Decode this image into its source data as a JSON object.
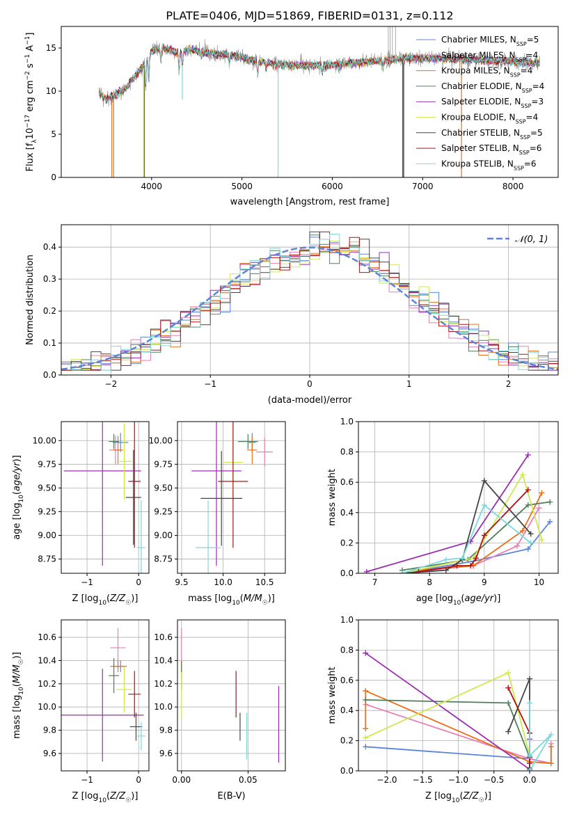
{
  "figure_title": "PLATE=0406, MJD=51869, FIBERID=0131, z=0.112",
  "colors": {
    "Chabrier MILES": "#5b84d8",
    "Salpeter MILES": "#e77fb5",
    "Kroupa MILES": "#e8701a",
    "Chabrier ELODIE": "#4f7f5a",
    "Salpeter ELODIE": "#9b2db0",
    "Kroupa ELODIE": "#cfe84f",
    "Chabrier STELIB": "#444444",
    "Salpeter STELIB": "#b01010",
    "Kroupa STELIB": "#79d9dd"
  },
  "chart_data": [
    {
      "id": "spectrum",
      "type": "line",
      "title": "PLATE=0406, MJD=51869, FIBERID=0131, z=0.112",
      "xlabel": "wavelength [Angstrom, rest frame]",
      "ylabel": "Flux [f_λ10^-17 erg cm^-2 s^-1 A^-1]",
      "xlim": [
        3000,
        8500
      ],
      "ylim": [
        0,
        17.5
      ],
      "xticks": [
        "4000",
        "5000",
        "6000",
        "7000",
        "8000"
      ],
      "yticks": [
        "0",
        "5",
        "10",
        "15"
      ],
      "grid": false,
      "legend_position": "top-right",
      "legend": [
        {
          "label": "Chabrier MILES, N",
          "sub": "SSP",
          "suffix": "=5"
        },
        {
          "label": "Salpeter MILES, N",
          "sub": "SSP",
          "suffix": "=4"
        },
        {
          "label": "Kroupa MILES, N",
          "sub": "SSP",
          "suffix": "=4"
        },
        {
          "label": "Chabrier ELODIE, N",
          "sub": "SSP",
          "suffix": "=4"
        },
        {
          "label": "Salpeter ELODIE, N",
          "sub": "SSP",
          "suffix": "=3"
        },
        {
          "label": "Kroupa ELODIE, N",
          "sub": "SSP",
          "suffix": "=4"
        },
        {
          "label": "Chabrier STELIB, N",
          "sub": "SSP",
          "suffix": "=5"
        },
        {
          "label": "Salpeter STELIB, N",
          "sub": "SSP",
          "suffix": "=6"
        },
        {
          "label": "Kroupa STELIB, N",
          "sub": "SSP",
          "suffix": "=6"
        }
      ],
      "continuum": [
        [
          3420,
          9.8
        ],
        [
          3500,
          9.0
        ],
        [
          3600,
          9.6
        ],
        [
          3700,
          10.2
        ],
        [
          3800,
          11.5
        ],
        [
          3900,
          12.8
        ],
        [
          4000,
          14.6
        ],
        [
          4100,
          15.0
        ],
        [
          4200,
          14.8
        ],
        [
          4300,
          14.4
        ],
        [
          4400,
          14.8
        ],
        [
          4500,
          14.6
        ],
        [
          4700,
          14.3
        ],
        [
          4900,
          14.2
        ],
        [
          5000,
          13.9
        ],
        [
          5200,
          13.4
        ],
        [
          5400,
          13.1
        ],
        [
          5600,
          13.0
        ],
        [
          5800,
          13.0
        ],
        [
          6000,
          13.0
        ],
        [
          6200,
          13.2
        ],
        [
          6400,
          13.4
        ],
        [
          6600,
          13.6
        ],
        [
          6800,
          13.8
        ],
        [
          7000,
          13.8
        ],
        [
          7200,
          13.8
        ],
        [
          7400,
          13.7
        ],
        [
          7600,
          13.6
        ],
        [
          7800,
          13.5
        ],
        [
          8000,
          13.4
        ],
        [
          8200,
          13.3
        ],
        [
          8300,
          13.3
        ]
      ]
    },
    {
      "id": "residuals",
      "type": "histogram",
      "xlabel": "(data-model)/error",
      "ylabel": "Normed distribution",
      "xlim": [
        -2.5,
        2.5
      ],
      "ylim": [
        0,
        0.47
      ],
      "xticks": [
        "−2",
        "−1",
        "0",
        "1",
        "2"
      ],
      "yticks": [
        "0.0",
        "0.1",
        "0.2",
        "0.3",
        "0.4"
      ],
      "grid": true,
      "legend": "𝒩(0, 1)",
      "legend_position": "top-right",
      "reference_curve": "normal(0,1)"
    },
    {
      "id": "age_vs_Z",
      "type": "scatter",
      "xlabel": "Z [log10(Z/Z☉)]",
      "ylabel": "age  [log10(age/yr)]",
      "xlim": [
        -1.5,
        0.2
      ],
      "ylim": [
        8.6,
        10.2
      ],
      "xticks": [
        "−1",
        "0"
      ],
      "yticks": [
        "8.75",
        "9.00",
        "9.25",
        "9.50",
        "9.75",
        "10.00"
      ],
      "grid": true,
      "points": [
        {
          "model": "Chabrier MILES",
          "x": -0.35,
          "y": 9.98,
          "xerr": 0.15,
          "yerr": 0.1
        },
        {
          "model": "Salpeter MILES",
          "x": -0.45,
          "y": 9.9,
          "xerr": 0.12,
          "yerr": 0.15
        },
        {
          "model": "Kroupa MILES",
          "x": -0.4,
          "y": 9.9,
          "xerr": 0.1,
          "yerr": 0.15
        },
        {
          "model": "Chabrier ELODIE",
          "x": -0.48,
          "y": 9.99,
          "xerr": 0.1,
          "yerr": 0.08
        },
        {
          "model": "Salpeter ELODIE",
          "x": -0.7,
          "y": 9.68,
          "xerr": 0.75,
          "yerr": 1.0
        },
        {
          "model": "Kroupa ELODIE",
          "x": -0.28,
          "y": 9.78,
          "xerr": 0.15,
          "yerr": 0.4
        },
        {
          "model": "Chabrier STELIB",
          "x": -0.1,
          "y": 9.4,
          "xerr": 0.15,
          "yerr": 0.5
        },
        {
          "model": "Salpeter STELIB",
          "x": -0.08,
          "y": 9.57,
          "xerr": 0.12,
          "yerr": 0.7
        },
        {
          "model": "Kroupa STELIB",
          "x": 0.05,
          "y": 8.87,
          "xerr": 0.08,
          "yerr": 0.5
        }
      ]
    },
    {
      "id": "age_vs_mass",
      "type": "scatter",
      "xlabel": "mass [log10(M/M☉)]",
      "ylabel": "",
      "xlim": [
        9.45,
        10.75
      ],
      "ylim": [
        8.6,
        10.2
      ],
      "xticks": [
        "9.5",
        "10.0",
        "10.5"
      ],
      "yticks": [
        "8.75",
        "9.00",
        "9.25",
        "9.50",
        "9.75",
        "10.00"
      ],
      "grid": true,
      "points": [
        {
          "model": "Chabrier MILES",
          "x": 10.35,
          "y": 9.98,
          "xerr": 0.04,
          "yerr": 0.1
        },
        {
          "model": "Salpeter MILES",
          "x": 10.5,
          "y": 9.88,
          "xerr": 0.1,
          "yerr": 0.15
        },
        {
          "model": "Kroupa MILES",
          "x": 10.35,
          "y": 9.9,
          "xerr": 0.06,
          "yerr": 0.15
        },
        {
          "model": "Chabrier ELODIE",
          "x": 10.3,
          "y": 9.99,
          "xerr": 0.12,
          "yerr": 0.08
        },
        {
          "model": "Salpeter ELODIE",
          "x": 9.92,
          "y": 9.68,
          "xerr": 0.3,
          "yerr": 1.0
        },
        {
          "model": "Kroupa ELODIE",
          "x": 10.12,
          "y": 9.77,
          "xerr": 0.12,
          "yerr": 0.4
        },
        {
          "model": "Chabrier STELIB",
          "x": 9.98,
          "y": 9.39,
          "xerr": 0.25,
          "yerr": 0.5
        },
        {
          "model": "Salpeter STELIB",
          "x": 10.12,
          "y": 9.57,
          "xerr": 0.18,
          "yerr": 0.7
        },
        {
          "model": "Kroupa STELIB",
          "x": 9.82,
          "y": 8.87,
          "xerr": 0.15,
          "yerr": 0.5
        }
      ]
    },
    {
      "id": "weight_vs_age",
      "type": "line",
      "xlabel": "age  [log10(age/yr)]",
      "ylabel": "mass weight",
      "xlim": [
        6.7,
        10.35
      ],
      "ylim": [
        0,
        1.0
      ],
      "xticks": [
        "7",
        "8",
        "9",
        "10"
      ],
      "yticks": [
        "0.0",
        "0.2",
        "0.4",
        "0.6",
        "0.8",
        "1.0"
      ],
      "grid": true,
      "series": [
        {
          "model": "Chabrier MILES",
          "x": [
            7.5,
            8.8,
            9.8,
            10.2
          ],
          "y": [
            0.0,
            0.08,
            0.16,
            0.34
          ]
        },
        {
          "model": "Salpeter MILES",
          "x": [
            8.0,
            8.8,
            9.6,
            10.0
          ],
          "y": [
            0.02,
            0.05,
            0.18,
            0.43
          ]
        },
        {
          "model": "Kroupa MILES",
          "x": [
            7.8,
            8.8,
            9.7,
            10.05
          ],
          "y": [
            0.02,
            0.05,
            0.28,
            0.53
          ]
        },
        {
          "model": "Chabrier ELODIE",
          "x": [
            7.5,
            8.7,
            9.8,
            10.2
          ],
          "y": [
            0.02,
            0.09,
            0.45,
            0.47
          ]
        },
        {
          "model": "Salpeter ELODIE",
          "x": [
            6.85,
            8.75,
            9.8
          ],
          "y": [
            0.01,
            0.21,
            0.78
          ]
        },
        {
          "model": "Kroupa ELODIE",
          "x": [
            7.5,
            8.8,
            9.7,
            10.05
          ],
          "y": [
            0.0,
            0.1,
            0.65,
            0.22
          ]
        },
        {
          "model": "Chabrier STELIB",
          "x": [
            7.5,
            8.3,
            8.6,
            9.0,
            9.85
          ],
          "y": [
            0.0,
            0.02,
            0.09,
            0.61,
            0.26
          ]
        },
        {
          "model": "Salpeter STELIB",
          "x": [
            7.8,
            8.5,
            8.75,
            8.85,
            9.0,
            9.8
          ],
          "y": [
            0.01,
            0.05,
            0.05,
            0.1,
            0.25,
            0.55
          ]
        },
        {
          "model": "Kroupa STELIB",
          "x": [
            7.5,
            8.3,
            8.6,
            9.0,
            9.85
          ],
          "y": [
            0.0,
            0.09,
            0.1,
            0.45,
            0.2
          ]
        }
      ]
    },
    {
      "id": "mass_vs_Z",
      "type": "scatter",
      "xlabel": "Z [log10(Z/Z☉)]",
      "ylabel": "mass [log10(M/M☉)]",
      "xlim": [
        -1.5,
        0.2
      ],
      "ylim": [
        9.45,
        10.75
      ],
      "xticks": [
        "−1",
        "0"
      ],
      "yticks": [
        "9.6",
        "9.8",
        "10.0",
        "10.2",
        "10.4",
        "10.6"
      ],
      "grid": true,
      "points": [
        {
          "model": "Chabrier MILES",
          "x": -0.35,
          "y": 10.35,
          "xerr": 0.12,
          "yerr": 0.05
        },
        {
          "model": "Salpeter MILES",
          "x": -0.4,
          "y": 10.51,
          "xerr": 0.15,
          "yerr": 0.17
        },
        {
          "model": "Kroupa MILES",
          "x": -0.4,
          "y": 10.35,
          "xerr": 0.15,
          "yerr": 0.05
        },
        {
          "model": "Chabrier ELODIE",
          "x": -0.48,
          "y": 10.27,
          "xerr": 0.1,
          "yerr": 0.15
        },
        {
          "model": "Salpeter ELODIE",
          "x": -0.7,
          "y": 9.93,
          "xerr": 0.8,
          "yerr": 0.4
        },
        {
          "model": "Kroupa ELODIE",
          "x": -0.28,
          "y": 10.15,
          "xerr": 0.15,
          "yerr": 0.2
        },
        {
          "model": "Chabrier STELIB",
          "x": -0.05,
          "y": 9.83,
          "xerr": 0.12,
          "yerr": 0.12
        },
        {
          "model": "Salpeter STELIB",
          "x": -0.08,
          "y": 10.11,
          "xerr": 0.12,
          "yerr": 0.2
        },
        {
          "model": "Kroupa STELIB",
          "x": 0.05,
          "y": 9.75,
          "xerr": 0.08,
          "yerr": 0.12
        }
      ]
    },
    {
      "id": "mass_vs_ebv",
      "type": "scatter",
      "xlabel": "E(B-V)",
      "ylabel": "",
      "xlim": [
        -0.003,
        0.078
      ],
      "ylim": [
        9.45,
        10.75
      ],
      "xticks": [
        "0.00",
        "0.05"
      ],
      "yticks": [
        "9.6",
        "9.8",
        "10.0",
        "10.2",
        "10.4",
        "10.6"
      ],
      "grid": true,
      "points": [
        {
          "model": "Chabrier MILES",
          "x": 0.0,
          "y": 10.35,
          "xerr": 0.0,
          "yerr": 0.05
        },
        {
          "model": "Salpeter MILES",
          "x": 0.0,
          "y": 10.5,
          "xerr": 0.0,
          "yerr": 0.18
        },
        {
          "model": "Kroupa MILES",
          "x": 0.0,
          "y": 10.35,
          "xerr": 0.0,
          "yerr": 0.05
        },
        {
          "model": "Chabrier ELODIE",
          "x": 0.0,
          "y": 10.27,
          "xerr": 0.0,
          "yerr": 0.12
        },
        {
          "model": "Salpeter ELODIE",
          "x": 0.073,
          "y": 9.85,
          "xerr": 0.0,
          "yerr": 0.33
        },
        {
          "model": "Kroupa ELODIE",
          "x": 0.0,
          "y": 10.1,
          "xerr": 0.0,
          "yerr": 0.2
        },
        {
          "model": "Chabrier STELIB",
          "x": 0.044,
          "y": 9.83,
          "xerr": 0.0,
          "yerr": 0.12
        },
        {
          "model": "Salpeter STELIB",
          "x": 0.041,
          "y": 10.11,
          "xerr": 0.0,
          "yerr": 0.2
        },
        {
          "model": "Kroupa STELIB",
          "x": 0.049,
          "y": 9.75,
          "xerr": 0.0,
          "yerr": 0.2
        }
      ]
    },
    {
      "id": "weight_vs_Z",
      "type": "line",
      "xlabel": "Z [log10(Z/Z☉)]",
      "ylabel": "mass weight",
      "xlim": [
        -2.4,
        0.4
      ],
      "ylim": [
        0,
        1.0
      ],
      "xticks": [
        "−2.0",
        "−1.5",
        "−1.0",
        "−0.5",
        "0.0"
      ],
      "yticks": [
        "0.0",
        "0.2",
        "0.4",
        "0.6",
        "0.8",
        "1.0"
      ],
      "grid": true,
      "series": [
        {
          "model": "Chabrier MILES",
          "x": [
            -2.3,
            0.0,
            0.3
          ],
          "y": [
            0.16,
            0.08,
            0.05
          ]
        },
        {
          "model": "Salpeter MILES",
          "x": [
            -2.3,
            0.0,
            0.3,
            0.3
          ],
          "y": [
            0.44,
            0.08,
            0.05,
            0.18
          ]
        },
        {
          "model": "Kroupa MILES",
          "x": [
            -2.3,
            -2.3,
            0.0,
            0.3,
            0.3
          ],
          "y": [
            0.28,
            0.53,
            0.06,
            0.05,
            0.16
          ]
        },
        {
          "model": "Chabrier ELODIE",
          "x": [
            -2.3,
            -0.3,
            0.0,
            0.0
          ],
          "y": [
            0.47,
            0.45,
            0.09,
            0.02
          ]
        },
        {
          "model": "Salpeter ELODIE",
          "x": [
            -2.3,
            0.0,
            0.0
          ],
          "y": [
            0.78,
            0.01,
            0.21
          ]
        },
        {
          "model": "Kroupa ELODIE",
          "x": [
            -2.3,
            -0.3,
            0.0,
            0.0
          ],
          "y": [
            0.22,
            0.65,
            0.1,
            0.0
          ]
        },
        {
          "model": "Chabrier STELIB",
          "x": [
            -0.3,
            0.0,
            0.0,
            0.0
          ],
          "y": [
            0.26,
            0.61,
            0.09,
            0.02
          ]
        },
        {
          "model": "Salpeter STELIB",
          "x": [
            -0.3,
            0.0,
            0.0,
            0.0
          ],
          "y": [
            0.55,
            0.25,
            0.05,
            0.1
          ]
        },
        {
          "model": "Kroupa STELIB",
          "x": [
            0.0,
            0.0,
            0.3,
            0.0
          ],
          "y": [
            0.45,
            0.1,
            0.24,
            0.0
          ]
        }
      ]
    }
  ]
}
